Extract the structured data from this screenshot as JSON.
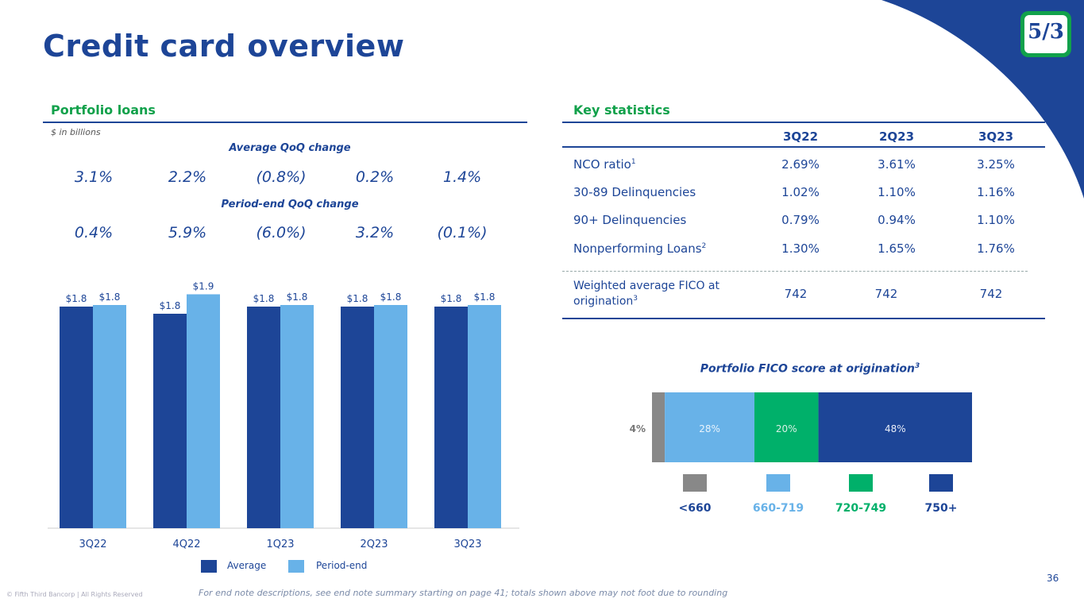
{
  "title": "Credit card overview",
  "portfolio": {
    "heading": "Portfolio loans",
    "units_note": "$ in billions",
    "avg_qoq_heading": "Average QoQ change",
    "avg_qoq": [
      "3.1%",
      "2.2%",
      "(0.8%)",
      "0.2%",
      "1.4%"
    ],
    "pe_qoq_heading": "Period-end QoQ change",
    "pe_qoq": [
      "0.4%",
      "5.9%",
      "(6.0%)",
      "3.2%",
      "(0.1%)"
    ],
    "legend_avg": "Average",
    "legend_pe": "Period-end"
  },
  "key_stats": {
    "heading": "Key statistics",
    "columns": [
      "3Q22",
      "2Q23",
      "3Q23"
    ],
    "rows": [
      {
        "label": "NCO ratio",
        "sup": "1",
        "values": [
          "2.69%",
          "3.61%",
          "3.25%"
        ]
      },
      {
        "label": "30-89 Delinquencies",
        "sup": "",
        "values": [
          "1.02%",
          "1.10%",
          "1.16%"
        ]
      },
      {
        "label": "90+ Delinquencies",
        "sup": "",
        "values": [
          "0.79%",
          "0.94%",
          "1.10%"
        ]
      },
      {
        "label": "Nonperforming Loans",
        "sup": "2",
        "values": [
          "1.30%",
          "1.65%",
          "1.76%"
        ]
      }
    ],
    "fico_row": {
      "label_line1": "Weighted average FICO at",
      "label_line2": "origination",
      "sup": "3",
      "values": [
        "742",
        "742",
        "742"
      ]
    }
  },
  "chart_data": [
    {
      "type": "bar",
      "categories": [
        "3Q22",
        "4Q22",
        "1Q23",
        "2Q23",
        "3Q23"
      ],
      "series": [
        {
          "name": "Average",
          "values": [
            1.8,
            1.8,
            1.8,
            1.8,
            1.8
          ],
          "labels": [
            "$1.8",
            "$1.8",
            "$1.8",
            "$1.8",
            "$1.8"
          ],
          "color": "#1d4597"
        },
        {
          "name": "Period-end",
          "values": [
            1.8,
            1.9,
            1.8,
            1.8,
            1.8
          ],
          "labels": [
            "$1.8",
            "$1.9",
            "$1.8",
            "$1.8",
            "$1.8"
          ],
          "color": "#68b2e8"
        }
      ],
      "ylabel": "$ in billions"
    },
    {
      "type": "bar",
      "title": "Portfolio FICO score at origination",
      "title_sup": "3",
      "categories": [
        "<660",
        "660-719",
        "720-749",
        "750+"
      ],
      "values": [
        4,
        28,
        20,
        48
      ],
      "labels": [
        "4%",
        "28%",
        "20%",
        "48%"
      ],
      "colors": [
        "#888888",
        "#68b2e8",
        "#00b06a",
        "#1d4597"
      ]
    }
  ],
  "footer": {
    "end_note": "For end note descriptions, see end note summary starting on page 41; totals shown above may not foot due to rounding",
    "copyright": "© Fifth Third Bancorp | All Rights Reserved",
    "page_number": "36"
  },
  "brand": {
    "logo_text": "5/3",
    "primary": "#1d4597",
    "green": "#11a14b"
  }
}
